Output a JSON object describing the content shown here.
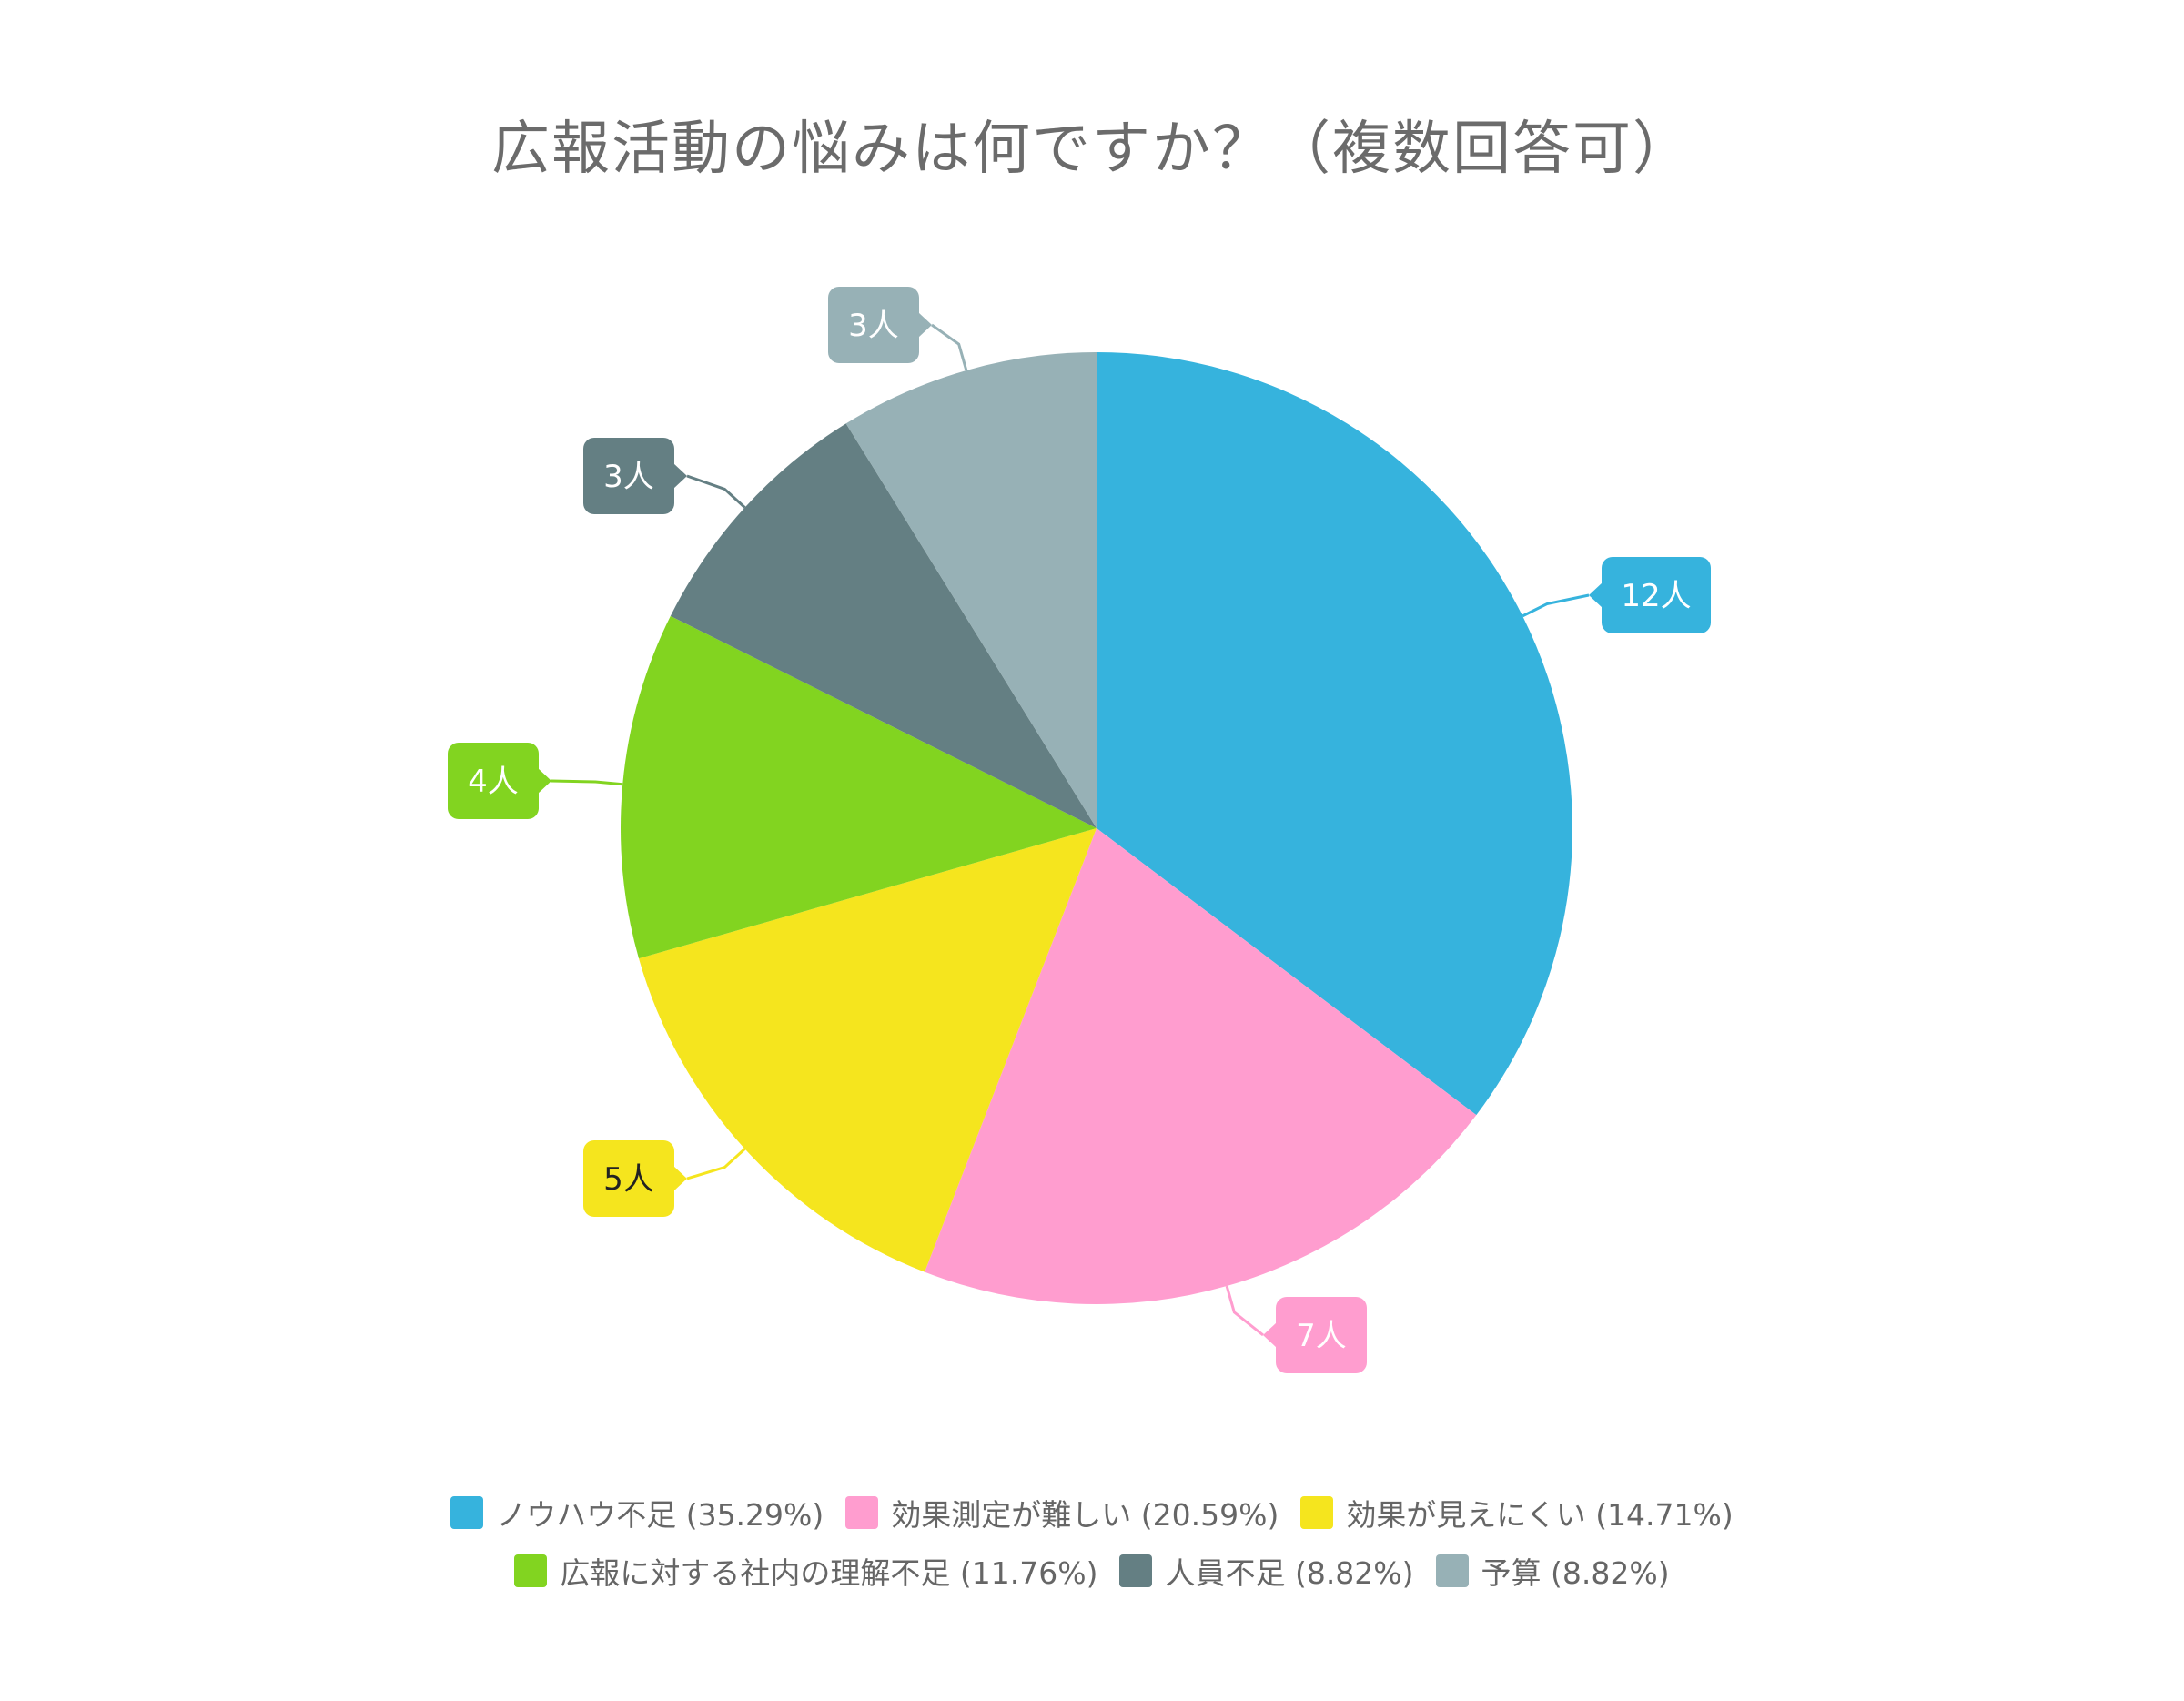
{
  "chart_data": {
    "type": "pie",
    "title": "広報活動の悩みは何ですか？（複数回答可）",
    "unit": "人",
    "slices": [
      {
        "label": "ノウハウ不足",
        "value": 12,
        "percent": "35.29%",
        "data_label": "12人",
        "color": "#36b3dd",
        "label_text_color": "#ffffff"
      },
      {
        "label": "効果測定が難しい",
        "value": 7,
        "percent": "20.59%",
        "data_label": "7人",
        "color": "#ff9dcf",
        "label_text_color": "#ffffff"
      },
      {
        "label": "効果が見えにくい",
        "value": 5,
        "percent": "14.71%",
        "data_label": "5人",
        "color": "#f5e51e",
        "label_text_color": "#222222"
      },
      {
        "label": "広報に対する社内の理解不足",
        "value": 4,
        "percent": "11.76%",
        "data_label": "4人",
        "color": "#82d420",
        "label_text_color": "#ffffff"
      },
      {
        "label": "人員不足",
        "value": 3,
        "percent": "8.82%",
        "data_label": "3人",
        "color": "#647f83",
        "label_text_color": "#ffffff"
      },
      {
        "label": "予算",
        "value": 3,
        "percent": "8.82%",
        "data_label": "3人",
        "color": "#97b1b6",
        "label_text_color": "#ffffff"
      }
    ],
    "legend_position": "bottom",
    "start_angle": "12 o'clock",
    "direction": "clockwise"
  },
  "legend_items": [
    "ノウハウ不足 (35.29%)",
    "効果測定が難しい (20.59%)",
    "効果が見えにくい (14.71%)",
    "広報に対する社内の理解不足 (11.76%)",
    "人員不足 (8.82%)",
    "予算 (8.82%)"
  ]
}
